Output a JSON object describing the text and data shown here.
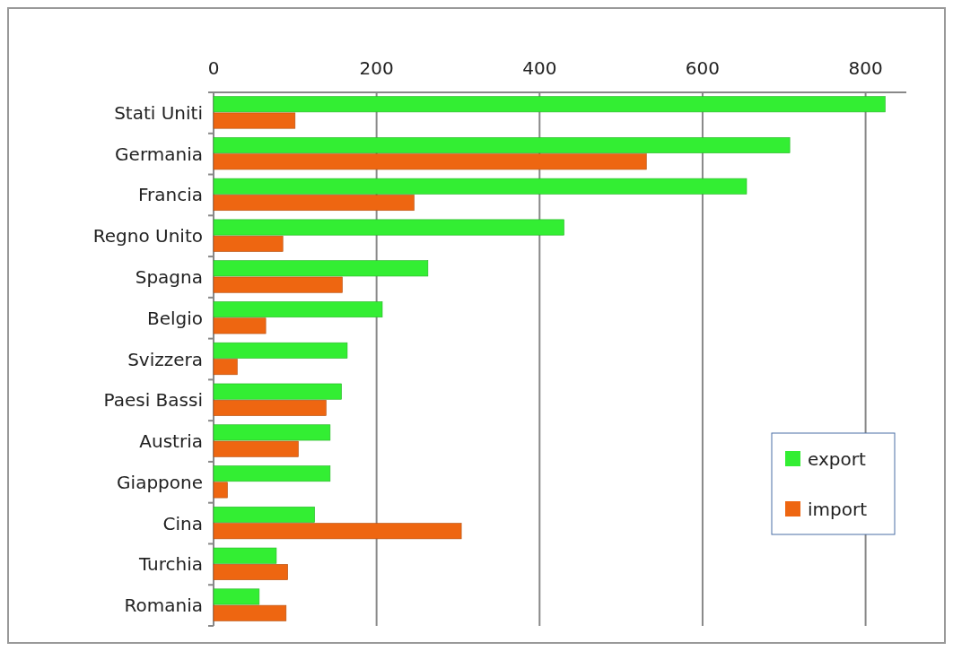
{
  "chart_data": {
    "type": "bar",
    "orientation": "horizontal",
    "categories": [
      "Stati Uniti",
      "Germania",
      "Francia",
      "Regno Unito",
      "Spagna",
      "Belgio",
      "Svizzera",
      "Paesi Bassi",
      "Austria",
      "Giappone",
      "Cina",
      "Turchia",
      "Romania"
    ],
    "series": [
      {
        "name": "export",
        "color": "#33ee33",
        "values": [
          824,
          707,
          654,
          430,
          263,
          207,
          164,
          157,
          143,
          143,
          124,
          77,
          56
        ]
      },
      {
        "name": "import",
        "color": "#ee6611",
        "values": [
          100,
          531,
          246,
          85,
          158,
          64,
          29,
          138,
          104,
          17,
          304,
          91,
          89
        ]
      }
    ],
    "xlim": [
      0,
      850
    ],
    "xticks": [
      0,
      200,
      400,
      600,
      800
    ],
    "grid": "x",
    "legend": "bottom right"
  }
}
